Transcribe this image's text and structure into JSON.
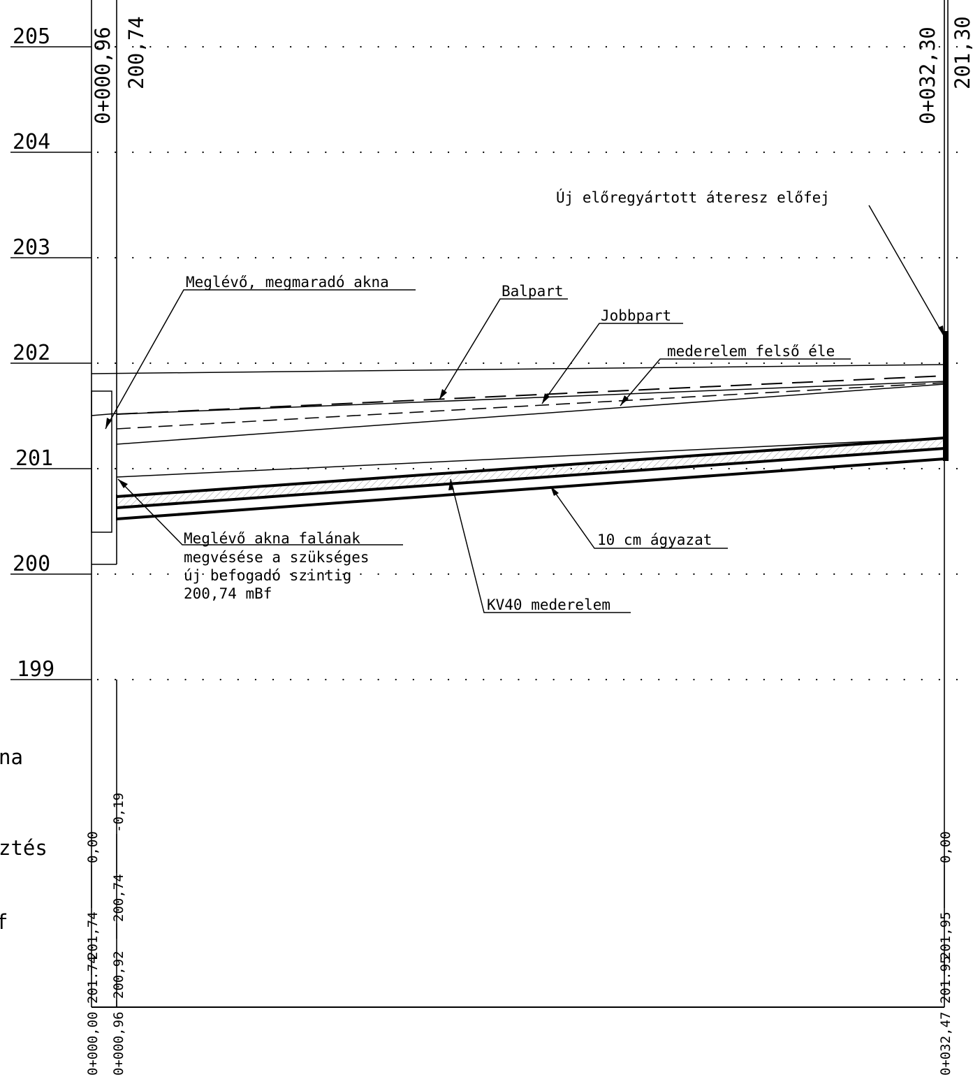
{
  "elevation_labels": [
    "205",
    "204",
    "203",
    "202",
    "201",
    "200",
    "199"
  ],
  "top_station_labels": {
    "start_station": "0+000,96",
    "start_level": "200,74",
    "end_station": "0+032,30",
    "end_level": "201,30"
  },
  "annotations": {
    "existing_shaft": "Meglévő, megmaradó akna",
    "left_bank": "Balpart",
    "right_bank": "Jobbpart",
    "channel_top_edge": "mederelem felső éle",
    "new_headwall": "Új előregyártott áteresz előfej",
    "bedding": "10 cm ágyazat",
    "channel_element": "KV40 mederelem",
    "wall_cut_note": [
      "Meglévő akna falának",
      "megvésése a szükséges",
      "új befogadó szintig",
      "200,74 mBf"
    ]
  },
  "left_margin_fragments": [
    "na",
    "ztés",
    "f"
  ],
  "bottom_columns": {
    "left_col1": [
      "0,00",
      "201,74",
      "0+000,00 201.74"
    ],
    "left_col2": [
      "-0,19",
      "200,74",
      "200,92",
      "0+000,96"
    ],
    "right_col": [
      "0,00",
      "201,95",
      "0+032,47 201.95"
    ]
  }
}
